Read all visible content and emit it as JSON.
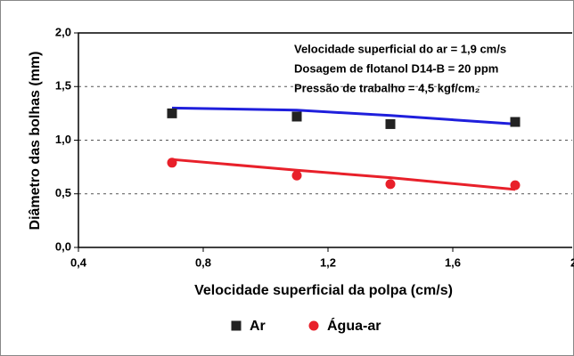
{
  "chart_data": {
    "type": "scatter",
    "xlabel": "Velocidade superficial da polpa (cm/s)",
    "ylabel": "Diâmetro das bolhas (mm)",
    "annotations": [
      "Velocidade superficial do ar = 1,9 cm/s",
      "Dosagem de flotanol D14-B = 20 ppm",
      "Pressão de trabalho = 4,5 kgf/cm₂"
    ],
    "xlim": [
      0.4,
      2.0
    ],
    "xticks": [
      {
        "value": 0.4,
        "label": "0,4"
      },
      {
        "value": 0.8,
        "label": "0,8"
      },
      {
        "value": 1.2,
        "label": "1,2"
      },
      {
        "value": 1.6,
        "label": "1,6"
      },
      2
    ],
    "ylim": [
      0,
      2.0
    ],
    "yticks": [
      {
        "value": 0,
        "label": "0,0"
      },
      {
        "value": 0.5,
        "label": "0,5"
      },
      {
        "value": 1.0,
        "label": "1,0"
      },
      {
        "value": 1.5,
        "label": "1,5"
      },
      {
        "value": 2.0,
        "label": "2,0"
      }
    ],
    "grid": true,
    "legend": "bottom",
    "series": [
      {
        "name": "Ar",
        "color": "#222222",
        "marker": "square",
        "x": [
          0.7,
          1.1,
          1.4,
          1.8
        ],
        "values": [
          1.25,
          1.22,
          1.15,
          1.17
        ]
      },
      {
        "name": "Água-ar",
        "color": "#e8202a",
        "marker": "circle",
        "x": [
          0.7,
          1.1,
          1.4,
          1.8
        ],
        "values": [
          0.79,
          0.67,
          0.59,
          0.58
        ]
      }
    ],
    "fits": [
      {
        "color": "#1f1fdc",
        "x": [
          0.7,
          1.1,
          1.4,
          1.8
        ],
        "values": [
          1.3,
          1.28,
          1.23,
          1.15
        ]
      },
      {
        "color": "#e8202a",
        "x": [
          0.7,
          1.1,
          1.4,
          1.8
        ],
        "values": [
          0.82,
          0.72,
          0.65,
          0.54
        ]
      }
    ]
  }
}
